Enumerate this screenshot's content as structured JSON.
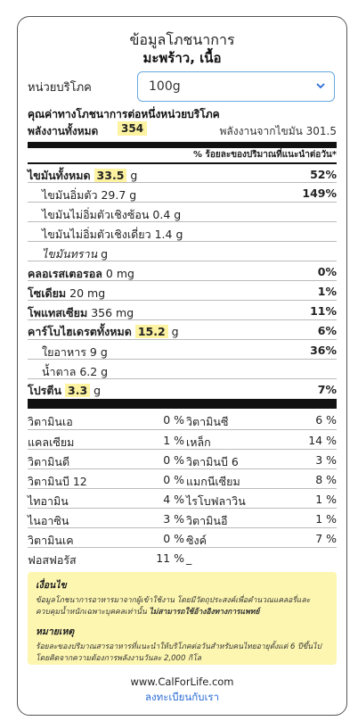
{
  "header": {
    "title": "ข้อมูลโภชนาการ",
    "subtitle": "มะพร้าว, เนื้อ"
  },
  "serving": {
    "label": "หน่วยบริโภค",
    "value": "100g"
  },
  "energy": {
    "section_title": "คุณค่าทางโภชนาการต่อหนึ่งหน่วยบริโภค",
    "label": "พลังงานทั้งหมด",
    "value": "354",
    "fat_label": "พลังงานจากไขมัน",
    "fat_value": "301.5"
  },
  "dv_header": "% ร้อยละของปริมาณที่แนะนำต่อวัน*",
  "nutrients": {
    "total_fat": {
      "label": "ไขมันทั้งหมด",
      "value": "33.5",
      "unit": "g",
      "pct": "52%"
    },
    "sat_fat": {
      "label": "ไขมันอิ่มตัว 29.7 g",
      "pct": "149%"
    },
    "poly_fat": {
      "label": "ไขมันไม่อิ่มตัวเชิงซ้อน 0.4 g"
    },
    "mono_fat": {
      "label": "ไขมันไม่อิ่มตัวเชิงเดี่ยว 1.4 g"
    },
    "trans_fat": {
      "label": "ไขมันทราน",
      "unit": "g"
    },
    "cholesterol": {
      "label": "คลอเรสเตอรอล",
      "value": "0 mg",
      "pct": "0%"
    },
    "sodium": {
      "label": "โซเดียม",
      "value": "20 mg",
      "pct": "1%"
    },
    "potassium": {
      "label": "โพแทสเซียม",
      "value": "356 mg",
      "pct": "11%"
    },
    "carbs": {
      "label": "คาร์โบไฮเดรตทั้งหมด",
      "value": "15.2",
      "unit": "g",
      "pct": "6%"
    },
    "fiber": {
      "label": "ใยอาหาร 9 g",
      "pct": "36%"
    },
    "sugar": {
      "label": "น้ำตาล 6.2 g"
    },
    "protein": {
      "label": "โปรตีน",
      "value": "3.3",
      "unit": "g",
      "pct": "7%"
    }
  },
  "vitamins": [
    {
      "l_name": "วิตามินเอ",
      "l_pct": "0 %",
      "r_name": "วิตามินซี",
      "r_pct": "6 %"
    },
    {
      "l_name": "แคลเซียม",
      "l_pct": "1 %",
      "r_name": "เหล็ก",
      "r_pct": "14 %"
    },
    {
      "l_name": "วิตามินดี",
      "l_pct": "0 %",
      "r_name": "วิตามินบี 6",
      "r_pct": "3 %"
    },
    {
      "l_name": "วิตามินบี 12",
      "l_pct": "0 %",
      "r_name": "แมกนีเซียม",
      "r_pct": "8 %"
    },
    {
      "l_name": "ไทอามิน",
      "l_pct": "4 %",
      "r_name": "ไรโบฟลาวิน",
      "r_pct": "1 %"
    },
    {
      "l_name": "ไนอาซิน",
      "l_pct": "3 %",
      "r_name": "วิตามินอี",
      "r_pct": "1 %"
    },
    {
      "l_name": "วิตามินเค",
      "l_pct": "0 %",
      "r_name": "ซิงค์",
      "r_pct": "7 %"
    },
    {
      "l_name": "ฟอสฟอรัส",
      "l_pct": "11 %",
      "r_name": "_",
      "r_pct": ""
    }
  ],
  "notes": {
    "conditions_title": "เงื่อนไข",
    "conditions_text": "ข้อมูลโภชนาการอาหารมาจากผู้เข้าใช้งาน โดยมีวัตถุประสงค์เพื่อคำนวณแคลอรี่และควบคุมน้ำหนักเฉพาะบุคคลเท่านั้น",
    "conditions_bold": "ไม่สามารถใช้อ้างอิงทางการแพทย์",
    "remark_title": "หมายเหตุ",
    "remark_text": "ร้อยละของปริมาณสารอาหารที่แนะนำให้บริโภคต่อวันสำหรับคนไทยอายุตั้งแต่ 6 ปีขึ้นไป โดยคิดจากความต้องการพลังงานวันละ 2,000 กิโล"
  },
  "footer": {
    "site": "www.CalForLife.com",
    "signup": "ลงทะเบียนกับเรา"
  }
}
